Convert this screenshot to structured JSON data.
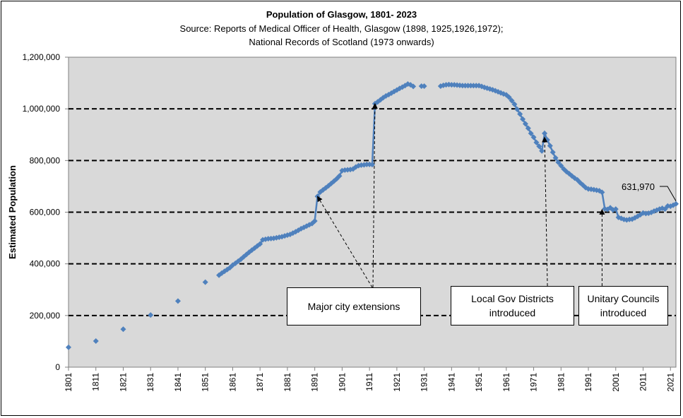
{
  "chart_data": {
    "type": "line",
    "title": "Population of Glasgow, 1801- 2023",
    "subtitle_lines": [
      "Source: Reports of Medical Officer of Health, Glasgow (1898, 1925,1926,1972);",
      "National Records of Scotland (1973 onwards)"
    ],
    "ylabel": "Estimated Population",
    "xlabel": "",
    "xlim": [
      1801,
      2023
    ],
    "ylim": [
      0,
      1200000
    ],
    "grid": "horizontal dashed",
    "y_ticks": [
      "0",
      "200,000",
      "400,000",
      "600,000",
      "800,000",
      "1,000,000",
      "1,200,000"
    ],
    "x_ticks": [
      "1801",
      "1811",
      "1821",
      "1831",
      "1841",
      "1851",
      "1861",
      "1871",
      "1881",
      "1891",
      "1901",
      "1911",
      "1921",
      "1931",
      "1941",
      "1951",
      "1961",
      "1971",
      "1981",
      "1991",
      "2001",
      "2011",
      "2021"
    ],
    "series": [
      {
        "color": "#4F81BD",
        "segments": [
          [
            [
              1801,
              77000
            ]
          ],
          [
            [
              1811,
              101000
            ]
          ],
          [
            [
              1821,
              147000
            ]
          ],
          [
            [
              1831,
              202000
            ]
          ],
          [
            [
              1841,
              256000
            ]
          ],
          [
            [
              1851,
              329000
            ]
          ],
          [
            [
              1856,
              356000
            ],
            [
              1857,
              364000
            ],
            [
              1858,
              371000
            ],
            [
              1859,
              378000
            ],
            [
              1860,
              385000
            ],
            [
              1861,
              395000
            ],
            [
              1862,
              402000
            ],
            [
              1863,
              410000
            ],
            [
              1864,
              418000
            ],
            [
              1865,
              427000
            ],
            [
              1866,
              436000
            ],
            [
              1867,
              445000
            ],
            [
              1868,
              453000
            ],
            [
              1869,
              461000
            ],
            [
              1870,
              469000
            ],
            [
              1871,
              477000
            ],
            [
              1872,
              493000
            ],
            [
              1873,
              495000
            ],
            [
              1874,
              497000
            ],
            [
              1875,
              498000
            ],
            [
              1876,
              499000
            ],
            [
              1877,
              501000
            ],
            [
              1878,
              503000
            ],
            [
              1879,
              505000
            ],
            [
              1880,
              508000
            ],
            [
              1881,
              511000
            ],
            [
              1882,
              514000
            ],
            [
              1883,
              519000
            ],
            [
              1884,
              524000
            ],
            [
              1885,
              530000
            ],
            [
              1886,
              536000
            ],
            [
              1887,
              541000
            ],
            [
              1888,
              546000
            ],
            [
              1889,
              551000
            ],
            [
              1890,
              556000
            ],
            [
              1891,
              566000
            ],
            [
              1892,
              661000
            ],
            [
              1893,
              678000
            ],
            [
              1894,
              686000
            ],
            [
              1895,
              694000
            ],
            [
              1896,
              702000
            ],
            [
              1897,
              711000
            ],
            [
              1898,
              720000
            ],
            [
              1899,
              729000
            ],
            [
              1900,
              740000
            ],
            [
              1901,
              761000
            ],
            [
              1902,
              763000
            ],
            [
              1903,
              764000
            ],
            [
              1904,
              765000
            ],
            [
              1905,
              767000
            ],
            [
              1906,
              775000
            ],
            [
              1907,
              780000
            ],
            [
              1908,
              782000
            ],
            [
              1909,
              783000
            ],
            [
              1910,
              785000
            ],
            [
              1911,
              785000
            ],
            [
              1912,
              784000
            ],
            [
              1913,
              1020000
            ],
            [
              1914,
              1027000
            ],
            [
              1915,
              1035000
            ],
            [
              1916,
              1043000
            ],
            [
              1917,
              1050000
            ],
            [
              1918,
              1055000
            ],
            [
              1919,
              1061000
            ],
            [
              1920,
              1067000
            ],
            [
              1921,
              1073000
            ],
            [
              1922,
              1079000
            ],
            [
              1923,
              1084000
            ],
            [
              1924,
              1090000
            ],
            [
              1925,
              1096000
            ],
            [
              1926,
              1093000
            ],
            [
              1927,
              1087000
            ]
          ],
          [
            [
              1930,
              1088000
            ],
            [
              1931,
              1088000
            ]
          ],
          [
            [
              1937,
              1088000
            ],
            [
              1938,
              1091000
            ],
            [
              1939,
              1093000
            ],
            [
              1940,
              1094000
            ],
            [
              1941,
              1093000
            ],
            [
              1942,
              1093000
            ],
            [
              1943,
              1092000
            ],
            [
              1944,
              1091000
            ],
            [
              1945,
              1090000
            ],
            [
              1946,
              1090000
            ],
            [
              1947,
              1090000
            ],
            [
              1948,
              1090000
            ],
            [
              1949,
              1090000
            ],
            [
              1950,
              1090000
            ],
            [
              1951,
              1090000
            ],
            [
              1952,
              1087000
            ],
            [
              1953,
              1083000
            ],
            [
              1954,
              1080000
            ],
            [
              1955,
              1077000
            ],
            [
              1956,
              1074000
            ],
            [
              1957,
              1070000
            ],
            [
              1958,
              1066000
            ],
            [
              1959,
              1062000
            ],
            [
              1960,
              1058000
            ],
            [
              1961,
              1054000
            ],
            [
              1962,
              1045000
            ],
            [
              1963,
              1032000
            ],
            [
              1964,
              1018000
            ],
            [
              1965,
              998000
            ],
            [
              1966,
              980000
            ],
            [
              1967,
              960000
            ],
            [
              1968,
              942000
            ],
            [
              1969,
              925000
            ],
            [
              1970,
              905000
            ],
            [
              1971,
              890000
            ],
            [
              1972,
              870000
            ],
            [
              1973,
              855000
            ],
            [
              1974,
              837000
            ],
            [
              1975,
              905000
            ],
            [
              1976,
              880000
            ],
            [
              1977,
              857000
            ],
            [
              1978,
              832000
            ],
            [
              1979,
              810000
            ],
            [
              1980,
              793000
            ],
            [
              1981,
              780000
            ],
            [
              1982,
              767000
            ],
            [
              1983,
              757000
            ],
            [
              1984,
              749000
            ],
            [
              1985,
              740000
            ],
            [
              1986,
              732000
            ],
            [
              1987,
              725000
            ],
            [
              1988,
              714000
            ],
            [
              1989,
              705000
            ],
            [
              1990,
              695000
            ],
            [
              1991,
              690000
            ],
            [
              1992,
              689000
            ],
            [
              1993,
              687000
            ],
            [
              1994,
              685000
            ],
            [
              1995,
              683000
            ],
            [
              1996,
              677000
            ],
            [
              1997,
              613000
            ],
            [
              1998,
              611000
            ],
            [
              1999,
              617000
            ],
            [
              2000,
              609000
            ],
            [
              2001,
              612000
            ],
            [
              2002,
              580000
            ],
            [
              2003,
              576000
            ],
            [
              2004,
              572000
            ],
            [
              2005,
              570000
            ],
            [
              2006,
              572000
            ],
            [
              2007,
              573000
            ],
            [
              2008,
              578000
            ],
            [
              2009,
              584000
            ],
            [
              2010,
              590000
            ],
            [
              2011,
              597000
            ],
            [
              2012,
              595000
            ],
            [
              2013,
              596000
            ],
            [
              2014,
              599000
            ],
            [
              2015,
              604000
            ],
            [
              2016,
              608000
            ],
            [
              2017,
              612000
            ],
            [
              2018,
              615000
            ],
            [
              2019,
              612000
            ],
            [
              2020,
              624000
            ],
            [
              2021,
              623000
            ],
            [
              2022,
              627000
            ],
            [
              2023,
              631970
            ]
          ]
        ]
      }
    ],
    "annotations": [
      {
        "label": "Major city extensions",
        "target_year": 1892,
        "target_value": 661000,
        "arrow_from_year": 1912,
        "second_target_year": 1913,
        "second_target_value": 1020000
      },
      {
        "label": "Local Gov Districts\nintroduced",
        "target_year": 1975,
        "target_value": 890000
      },
      {
        "label": "Unitary Councils\nintroduced",
        "target_year": 1996,
        "target_value": 610000
      }
    ],
    "callout": {
      "label": "631,970",
      "year": 2023,
      "value": 631970
    }
  },
  "colors": {
    "plot_bg": "#D9D9D9",
    "series": "#4F81BD",
    "grid": "#000000"
  }
}
